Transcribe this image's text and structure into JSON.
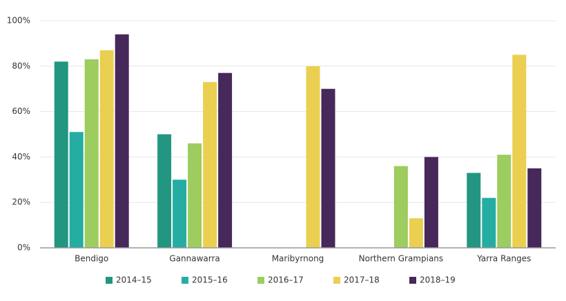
{
  "chart_data": {
    "type": "bar",
    "categories": [
      "Bendigo",
      "Gannawarra",
      "Maribyrnong",
      "Northern Grampians",
      "Yarra Ranges"
    ],
    "series": [
      {
        "name": "2014–15",
        "color": "#229681",
        "values": [
          82,
          50,
          null,
          null,
          33
        ]
      },
      {
        "name": "2015–16",
        "color": "#25ada2",
        "values": [
          51,
          30,
          null,
          null,
          22
        ]
      },
      {
        "name": "2016–17",
        "color": "#9dcc5f",
        "values": [
          83,
          46,
          null,
          36,
          41
        ]
      },
      {
        "name": "2017–18",
        "color": "#ebcf50",
        "values": [
          87,
          73,
          80,
          13,
          85
        ]
      },
      {
        "name": "2018–19",
        "color": "#46285a",
        "values": [
          94,
          77,
          70,
          40,
          35
        ]
      }
    ],
    "ylim": [
      0,
      100
    ],
    "yticks": [
      {
        "value": 0,
        "label": "0%"
      },
      {
        "value": 20,
        "label": "20%"
      },
      {
        "value": 40,
        "label": "40%"
      },
      {
        "value": 60,
        "label": "60%"
      },
      {
        "value": 80,
        "label": "80%"
      },
      {
        "value": 100,
        "label": "100%"
      }
    ],
    "grid": true,
    "legend": "bottom"
  }
}
